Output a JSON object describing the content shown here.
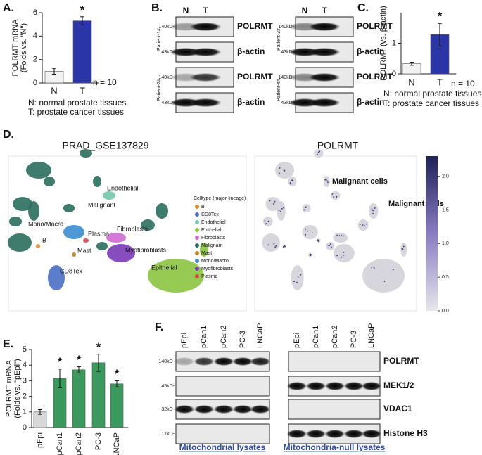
{
  "chart_data": [
    {
      "type": "bar",
      "panel": "A.",
      "ylabel": [
        "POLRMT mRNA",
        "(Folds vs. \"N\")"
      ],
      "categories": [
        "N",
        "T"
      ],
      "values": [
        1.0,
        5.3
      ],
      "errors": [
        0.25,
        0.35
      ],
      "colors": [
        "#f2f2f2",
        "#2a36a8"
      ],
      "significance": [
        null,
        "*"
      ],
      "annotation": "n = 10",
      "ylim": [
        0,
        6
      ],
      "yticks": [
        0,
        2,
        4,
        6
      ],
      "notes": [
        "N: normal prostate  tissues",
        "T: prostate cancer tissues"
      ],
      "note_colors": [
        "#111111",
        "#2b4aa8"
      ]
    },
    {
      "type": "bar",
      "panel": "C.",
      "ylabel": [
        "POLRMT (vs. β-actin)"
      ],
      "categories": [
        "N",
        "T"
      ],
      "values": [
        0.33,
        1.28
      ],
      "errors": [
        0.05,
        0.37
      ],
      "colors": [
        "#f2f2f2",
        "#2a36a8"
      ],
      "significance": [
        null,
        "*"
      ],
      "annotation": "n = 10",
      "ylim": [
        0,
        2
      ],
      "yticks": [
        0,
        1
      ],
      "notes": [
        "N: normal prostate  tissues",
        "T: prostate cancer tissues"
      ],
      "note_colors": [
        "#111111",
        "#2b4aa8"
      ]
    },
    {
      "type": "bar",
      "panel": "E.",
      "ylabel": [
        "POLRMT mRNA",
        "(Folds vs. \"pEpi\")"
      ],
      "categories": [
        "pEpi",
        "pCan1",
        "pCan2",
        "PC-3",
        "LNCaP"
      ],
      "category_colors": [
        "#111111",
        "#2e9a5a",
        "#2e9a5a",
        "#2e9a5a",
        "#2e9a5a"
      ],
      "values": [
        1.0,
        3.15,
        3.7,
        4.15,
        2.8
      ],
      "errors": [
        0.15,
        0.6,
        0.2,
        0.55,
        0.2
      ],
      "colors": [
        "#d8d8d8",
        "#3a9a5e",
        "#3a9a5e",
        "#3a9a5e",
        "#3a9a5e"
      ],
      "significance": [
        null,
        "*",
        "*",
        "*",
        "*"
      ],
      "ylim": [
        0,
        5
      ],
      "yticks": [
        0,
        1,
        2,
        3,
        4,
        5
      ]
    }
  ],
  "blots_b": {
    "panel": "B.",
    "lanes": [
      "N",
      "T"
    ],
    "lane_colors": [
      "#111111",
      "#d83a1a"
    ],
    "patients": [
      {
        "label": "Patient-1#",
        "rows": [
          {
            "marker": "140kD-",
            "protein": "POLRMT"
          },
          {
            "marker": "43kD-",
            "protein": "β-actin"
          }
        ]
      },
      {
        "label": "Patient-2#",
        "rows": [
          {
            "marker": "140kD-",
            "protein": "POLRMT"
          },
          {
            "marker": "43kD-",
            "protein": "β-actin"
          }
        ]
      },
      {
        "label": "Patient-3#",
        "rows": [
          {
            "marker": "140kD-",
            "protein": "POLRMT"
          },
          {
            "marker": "43kD-",
            "protein": "β-actin"
          }
        ]
      },
      {
        "label": "Patient-4#",
        "rows": [
          {
            "marker": "140kD-",
            "protein": "POLRMT"
          },
          {
            "marker": "43kD-",
            "protein": "β-actin"
          }
        ]
      }
    ]
  },
  "umap": {
    "panel": "D.",
    "left_title": "PRAD_GSE137829",
    "right_title": "POLRMT",
    "legend_title": "Celltype (major-lineage)",
    "celltypes": [
      {
        "name": "B",
        "color": "#e08a2a"
      },
      {
        "name": "CD8Tex",
        "color": "#4a6fc4"
      },
      {
        "name": "Endothelial",
        "color": "#72c8a8"
      },
      {
        "name": "Epithelial",
        "color": "#8cc43f"
      },
      {
        "name": "Fibroblasts",
        "color": "#cf6ad0"
      },
      {
        "name": "Malignant",
        "color": "#2a6e5e"
      },
      {
        "name": "Mast",
        "color": "#b8862e"
      },
      {
        "name": "Mono/Macro",
        "color": "#3a8ed0"
      },
      {
        "name": "Myofibroblasts",
        "color": "#7a3ab8"
      },
      {
        "name": "Plasma",
        "color": "#e0444a"
      }
    ],
    "cluster_labels": [
      "Endothelial",
      "Malignant",
      "Mono/Macro",
      "Plasma",
      "Fibroblasts",
      "B",
      "Mast",
      "Myofibroblasts",
      "CD8Tex",
      "Epithelial"
    ],
    "annotations": [
      "Malignant cells",
      "Malignant cells"
    ],
    "colorbar": {
      "lim": [
        0,
        2.3
      ],
      "ticks": [
        {
          "value": 0,
          "label": "0.0"
        },
        0.5,
        {
          "value": 1,
          "label": "1.0"
        },
        1.5,
        {
          "value": 2,
          "label": "2.0"
        }
      ]
    }
  },
  "blots_f": {
    "panel": "F.",
    "lanes": [
      "pEpi",
      "pCan1",
      "pCan2",
      "PC-3",
      "LNCaP"
    ],
    "lane_colors": [
      "#111111",
      "#2e9a5a",
      "#2e9a5a",
      "#2e9a5a",
      "#2e9a5a"
    ],
    "rows": [
      {
        "marker": "140kD-",
        "protein": "POLRMT"
      },
      {
        "marker": "45kD-",
        "protein": "MEK1/2"
      },
      {
        "marker": "32kD-",
        "protein": "VDAC1"
      },
      {
        "marker": "17kD-",
        "protein": "Histone H3"
      }
    ],
    "captions": [
      "Mitochondrial lysates",
      "Mitochondria-null lysates"
    ]
  }
}
